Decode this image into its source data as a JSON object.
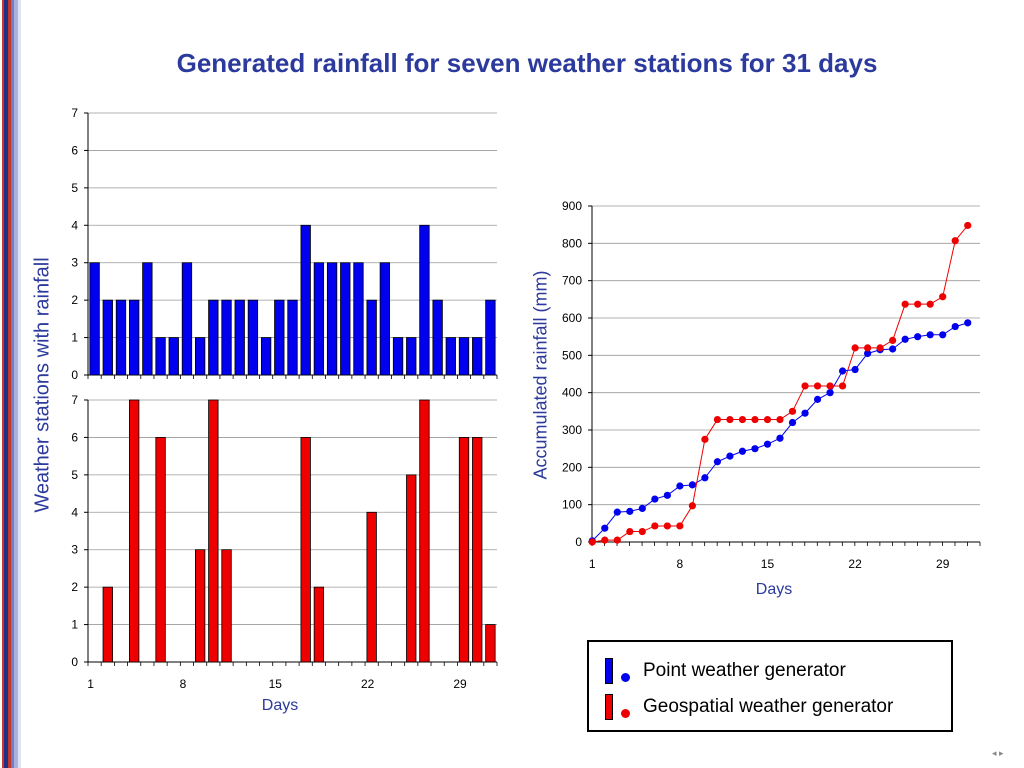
{
  "title": "Generated rainfall for seven weather stations for 31 days",
  "ylabel_left": "Weather stations with rainfall",
  "legend": {
    "point": "Point weather generator",
    "geospatial": "Geospatial weather generator"
  },
  "colors": {
    "point": "#0000ee",
    "geospatial": "#ee0000",
    "title": "#2b3a9c"
  },
  "chart_data": [
    {
      "type": "bar",
      "panel": "top-left",
      "xlabel": "",
      "ylabel": "",
      "x": [
        1,
        2,
        3,
        4,
        5,
        6,
        7,
        8,
        9,
        10,
        11,
        12,
        13,
        14,
        15,
        16,
        17,
        18,
        19,
        20,
        21,
        22,
        23,
        24,
        25,
        26,
        27,
        28,
        29,
        30,
        31
      ],
      "values": [
        3,
        2,
        2,
        2,
        3,
        1,
        1,
        3,
        1,
        2,
        2,
        2,
        2,
        1,
        2,
        2,
        4,
        3,
        3,
        3,
        3,
        2,
        3,
        1,
        1,
        4,
        2,
        1,
        1,
        1,
        2
      ],
      "series_name": "Point weather generator",
      "ylim": [
        0,
        7
      ],
      "yticks": [
        0,
        1,
        2,
        3,
        4,
        5,
        6,
        7
      ],
      "grid": true
    },
    {
      "type": "bar",
      "panel": "bottom-left",
      "xlabel": "Days",
      "ylabel": "",
      "x": [
        1,
        2,
        3,
        4,
        5,
        6,
        7,
        8,
        9,
        10,
        11,
        12,
        13,
        14,
        15,
        16,
        17,
        18,
        19,
        20,
        21,
        22,
        23,
        24,
        25,
        26,
        27,
        28,
        29,
        30,
        31
      ],
      "values": [
        0,
        2,
        0,
        7,
        0,
        6,
        0,
        0,
        3,
        7,
        3,
        0,
        0,
        0,
        0,
        0,
        6,
        2,
        0,
        0,
        0,
        4,
        0,
        0,
        5,
        7,
        0,
        0,
        6,
        6,
        1
      ],
      "series_name": "Geospatial weather generator",
      "ylim": [
        0,
        7
      ],
      "yticks": [
        0,
        1,
        2,
        3,
        4,
        5,
        6,
        7
      ],
      "xticks": [
        1,
        8,
        15,
        22,
        29
      ],
      "grid": true
    },
    {
      "type": "line",
      "panel": "right",
      "xlabel": "Days",
      "ylabel": "Accumulated rainfall (mm)",
      "x": [
        1,
        2,
        3,
        4,
        5,
        6,
        7,
        8,
        9,
        10,
        11,
        12,
        13,
        14,
        15,
        16,
        17,
        18,
        19,
        20,
        21,
        22,
        23,
        24,
        25,
        26,
        27,
        28,
        29,
        30,
        31
      ],
      "series": [
        {
          "name": "Point weather generator",
          "values": [
            3,
            37,
            80,
            82,
            90,
            115,
            125,
            150,
            153,
            172,
            215,
            230,
            243,
            250,
            262,
            278,
            320,
            345,
            382,
            400,
            458,
            462,
            505,
            515,
            517,
            543,
            550,
            555,
            555,
            577,
            587
          ]
        },
        {
          "name": "Geospatial weather generator",
          "values": [
            0,
            5,
            5,
            28,
            28,
            43,
            43,
            43,
            97,
            275,
            328,
            328,
            328,
            328,
            328,
            328,
            350,
            418,
            418,
            418,
            418,
            520,
            520,
            520,
            540,
            637,
            637,
            637,
            657,
            807,
            848
          ]
        }
      ],
      "ylim": [
        0,
        900
      ],
      "yticks": [
        0,
        100,
        200,
        300,
        400,
        500,
        600,
        700,
        800,
        900
      ],
      "xticks": [
        1,
        8,
        15,
        22,
        29
      ],
      "grid": true
    }
  ]
}
